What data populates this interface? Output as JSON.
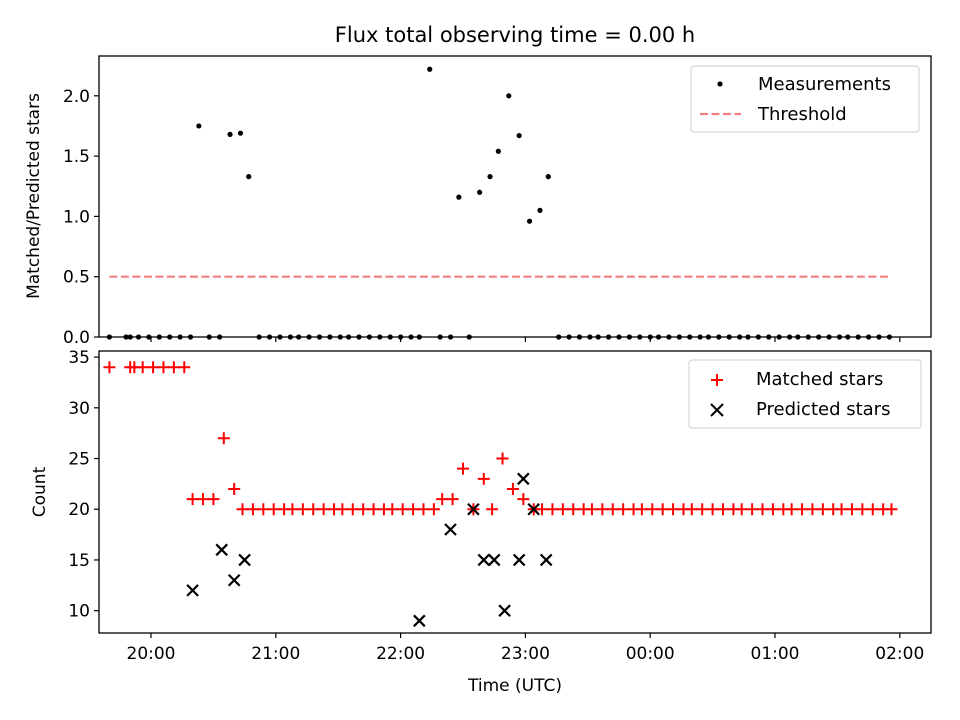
{
  "title": "Flux total observing time = 0.00 h",
  "colors": {
    "measurement": "#000000",
    "threshold": "#f08080",
    "matched": "#ff0000",
    "predicted": "#000000"
  },
  "chart_data": [
    {
      "type": "scatter",
      "title": "Flux total observing time = 0.00 h",
      "ylabel": "Matched/Predicted stars",
      "xlabel": "",
      "xlim": [
        "19:35",
        "02:15"
      ],
      "ylim": [
        0,
        2.33
      ],
      "xticks": [
        "20:00",
        "21:00",
        "22:00",
        "23:00",
        "00:00",
        "01:00",
        "02:00"
      ],
      "xtick_labels_shown": false,
      "yticks": [
        0.0,
        0.5,
        1.0,
        1.5,
        2.0
      ],
      "ytick_labels": [
        "0.0",
        "0.5",
        "1.0",
        "1.5",
        "2.0"
      ],
      "legend_position": "upper-right",
      "series": [
        {
          "name": "Measurements",
          "marker": "dot",
          "x": [
            "19:40",
            "19:48",
            "19:50",
            "19:54",
            "19:59",
            "20:04",
            "20:09",
            "20:14",
            "20:19",
            "20:23",
            "20:28",
            "20:33",
            "20:38",
            "20:43",
            "20:47",
            "20:52",
            "20:57",
            "21:02",
            "21:07",
            "21:11",
            "21:16",
            "21:21",
            "21:26",
            "21:31",
            "21:35",
            "21:40",
            "21:45",
            "21:50",
            "21:55",
            "22:00",
            "22:05",
            "22:09",
            "22:14",
            "22:19",
            "22:24",
            "22:28",
            "22:33",
            "22:38",
            "22:43",
            "22:47",
            "22:52",
            "22:57",
            "23:02",
            "23:07",
            "23:11",
            "23:16",
            "23:21",
            "23:26",
            "23:31",
            "23:35",
            "23:40",
            "23:45",
            "23:50",
            "23:55",
            "00:00",
            "00:04",
            "00:09",
            "00:14",
            "00:19",
            "00:24",
            "00:28",
            "00:33",
            "00:38",
            "00:43",
            "00:47",
            "00:52",
            "00:57",
            "01:02",
            "01:07",
            "01:11",
            "01:16",
            "01:21",
            "01:26",
            "01:31",
            "01:35",
            "01:40",
            "01:45",
            "01:50",
            "01:55"
          ],
          "y": [
            0,
            0,
            0,
            0,
            0,
            0,
            0,
            0,
            0,
            1.75,
            0,
            0,
            1.68,
            1.69,
            1.33,
            0,
            0,
            0,
            0,
            0,
            0,
            0,
            0,
            0,
            0,
            0,
            0,
            0,
            0,
            0,
            0,
            0,
            2.22,
            0,
            0,
            1.16,
            0,
            1.2,
            1.33,
            1.54,
            2.0,
            1.67,
            0.96,
            1.05,
            1.33,
            0,
            0,
            0,
            0,
            0,
            0,
            0,
            0,
            0,
            0,
            0,
            0,
            0,
            0,
            0,
            0,
            0,
            0,
            0,
            0,
            0,
            0,
            0,
            0,
            0,
            0,
            0,
            0,
            0,
            0,
            0,
            0,
            0,
            0
          ]
        },
        {
          "name": "Threshold",
          "line": "dashed",
          "x": [
            "19:40",
            "01:55"
          ],
          "y": [
            0.5,
            0.5
          ]
        }
      ]
    },
    {
      "type": "scatter",
      "title": "",
      "ylabel": "Count",
      "xlabel": "Time (UTC)",
      "xlim": [
        "19:35",
        "02:15"
      ],
      "ylim": [
        7.8,
        35.6
      ],
      "xticks": [
        "20:00",
        "21:00",
        "22:00",
        "23:00",
        "00:00",
        "01:00",
        "02:00"
      ],
      "xtick_labels": [
        "20:00",
        "21:00",
        "22:00",
        "23:00",
        "00:00",
        "01:00",
        "02:00"
      ],
      "yticks": [
        10,
        15,
        20,
        25,
        30,
        35
      ],
      "ytick_labels": [
        "10",
        "15",
        "20",
        "25",
        "30",
        "35"
      ],
      "legend_position": "upper-right",
      "series": [
        {
          "name": "Matched stars",
          "marker": "plus",
          "x": [
            "19:40",
            "19:50",
            "19:52",
            "19:56",
            "20:01",
            "20:06",
            "20:11",
            "20:16",
            "20:20",
            "20:25",
            "20:30",
            "20:35",
            "20:40",
            "20:44",
            "20:49",
            "20:54",
            "20:59",
            "21:04",
            "21:08",
            "21:13",
            "21:18",
            "21:23",
            "21:28",
            "21:32",
            "21:37",
            "21:42",
            "21:47",
            "21:52",
            "21:56",
            "22:01",
            "22:06",
            "22:11",
            "22:16",
            "22:20",
            "22:25",
            "22:30",
            "22:35",
            "22:40",
            "22:44",
            "22:49",
            "22:54",
            "22:59",
            "23:04",
            "23:08",
            "23:13",
            "23:18",
            "23:23",
            "23:28",
            "23:32",
            "23:37",
            "23:42",
            "23:47",
            "23:52",
            "23:56",
            "00:01",
            "00:06",
            "00:11",
            "00:16",
            "00:20",
            "00:25",
            "00:30",
            "00:35",
            "00:40",
            "00:44",
            "00:49",
            "00:54",
            "00:59",
            "01:04",
            "01:08",
            "01:13",
            "01:18",
            "01:23",
            "01:28",
            "01:32",
            "01:37",
            "01:42",
            "01:47",
            "01:52",
            "01:56"
          ],
          "y": [
            34,
            34,
            34,
            34,
            34,
            34,
            34,
            34,
            21,
            21,
            21,
            27,
            22,
            20,
            20,
            20,
            20,
            20,
            20,
            20,
            20,
            20,
            20,
            20,
            20,
            20,
            20,
            20,
            20,
            20,
            20,
            20,
            20,
            21,
            21,
            24,
            20,
            23,
            20,
            25,
            22,
            21,
            20,
            20,
            20,
            20,
            20,
            20,
            20,
            20,
            20,
            20,
            20,
            20,
            20,
            20,
            20,
            20,
            20,
            20,
            20,
            20,
            20,
            20,
            20,
            20,
            20,
            20,
            20,
            20,
            20,
            20,
            20,
            20,
            20,
            20,
            20,
            20,
            20
          ]
        },
        {
          "name": "Predicted stars",
          "marker": "x",
          "x": [
            "20:20",
            "20:34",
            "20:40",
            "20:45",
            "22:09",
            "22:24",
            "22:35",
            "22:40",
            "22:45",
            "22:50",
            "22:57",
            "22:59",
            "23:04",
            "23:10"
          ],
          "y": [
            12,
            16,
            13,
            15,
            9,
            18,
            20,
            15,
            15,
            10,
            15,
            23,
            20,
            15
          ]
        }
      ]
    }
  ]
}
